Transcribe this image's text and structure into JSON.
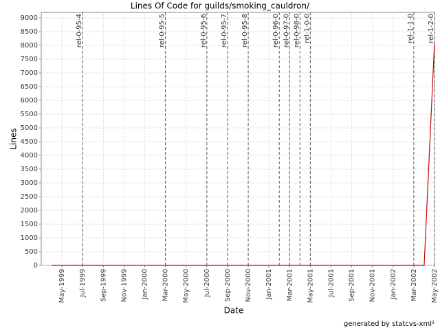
{
  "chart_data": {
    "type": "line",
    "title": "Lines Of Code for guilds/smoking_cauldron/",
    "x_label": "Date",
    "y_label": "Lines",
    "footer": "generated by statcvs-xml²",
    "x": [
      "1999-04",
      "2002-04",
      "2002-05"
    ],
    "series": [
      {
        "color": "#cc0000",
        "values": [
          0,
          0,
          8100
        ]
      }
    ],
    "xlim": [
      "1999-03",
      "2002-05"
    ],
    "xticks": [
      {
        "value": "1999-05",
        "label": "May-1999"
      },
      {
        "value": "1999-07",
        "label": "Jul-1999"
      },
      {
        "value": "1999-09",
        "label": "Sep-1999"
      },
      {
        "value": "1999-11",
        "label": "Nov-1999"
      },
      {
        "value": "2000-01",
        "label": "Jan-2000"
      },
      {
        "value": "2000-03",
        "label": "Mar-2000"
      },
      {
        "value": "2000-05",
        "label": "May-2000"
      },
      {
        "value": "2000-07",
        "label": "Jul-2000"
      },
      {
        "value": "2000-09",
        "label": "Sep-2000"
      },
      {
        "value": "2000-11",
        "label": "Nov-2000"
      },
      {
        "value": "2001-01",
        "label": "Jan-2001"
      },
      {
        "value": "2001-03",
        "label": "Mar-2001"
      },
      {
        "value": "2001-05",
        "label": "May-2001"
      },
      {
        "value": "2001-07",
        "label": "Jul-2001"
      },
      {
        "value": "2001-09",
        "label": "Sep-2001"
      },
      {
        "value": "2001-11",
        "label": "Nov-2001"
      },
      {
        "value": "2002-01",
        "label": "Jan-2002"
      },
      {
        "value": "2002-03",
        "label": "Mar-2002"
      },
      {
        "value": "2002-05",
        "label": "May-2002"
      }
    ],
    "ylim": [
      0,
      9200
    ],
    "yticks": [
      0,
      500,
      1000,
      1500,
      2000,
      2500,
      3000,
      3500,
      4000,
      4500,
      5000,
      5500,
      6000,
      6500,
      7000,
      7500,
      8000,
      8500,
      9000
    ],
    "grid": true,
    "markers": [
      {
        "label": "rel-0-95-4",
        "x": "1999-07"
      },
      {
        "label": "rel-0-95-5",
        "x": "2000-03"
      },
      {
        "label": "rel-0-95-6",
        "x": "2000-07"
      },
      {
        "label": "rel-0-95-7",
        "x": "2000-09"
      },
      {
        "label": "rel-0-95-8",
        "x": "2000-11"
      },
      {
        "label": "rel-0-96-0",
        "x": "2001-02"
      },
      {
        "label": "rel-0-97-0",
        "x": "2001-03"
      },
      {
        "label": "rel-0-98-0",
        "x": "2001-04"
      },
      {
        "label": "rel-1-0-0",
        "x": "2001-05"
      },
      {
        "label": "rel-1-1-0",
        "x": "2002-03"
      },
      {
        "label": "rel-1-2-0",
        "x": "2002-05"
      }
    ]
  }
}
